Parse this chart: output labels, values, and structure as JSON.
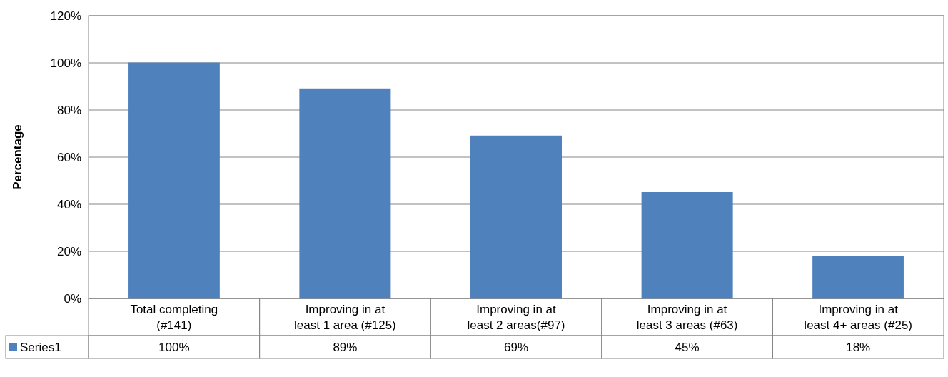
{
  "chart_data": {
    "type": "bar",
    "ylabel": "Percentage",
    "categories": [
      "Total completing (#141)",
      "Improving in at least 1 area (#125)",
      "Improving in at least 2 areas(#97)",
      "Improving in at least 3 areas (#63)",
      "Improving in at least 4+ areas (#25)"
    ],
    "series": [
      {
        "name": "Series1",
        "color": "#4f81bd",
        "values": [
          100,
          89,
          69,
          45,
          18
        ],
        "value_labels": [
          "100%",
          "89%",
          "69%",
          "45%",
          "18%"
        ]
      }
    ],
    "ylim": [
      0,
      120
    ],
    "yticks": [
      {
        "value": 0,
        "label": "0%"
      },
      {
        "value": 20,
        "label": "20%"
      },
      {
        "value": 40,
        "label": "40%"
      },
      {
        "value": 60,
        "label": "60%"
      },
      {
        "value": 80,
        "label": "80%"
      },
      {
        "value": 100,
        "label": "100%"
      },
      {
        "value": 120,
        "label": "120%"
      }
    ],
    "grid": "y",
    "legend": "bottom left"
  }
}
